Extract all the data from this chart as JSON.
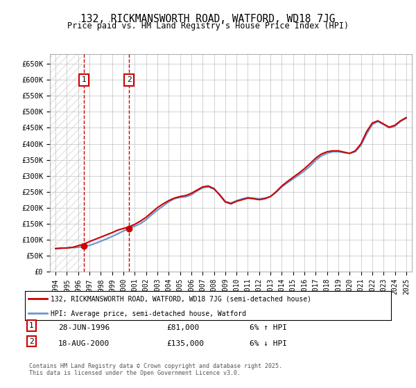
{
  "title": "132, RICKMANSWORTH ROAD, WATFORD, WD18 7JG",
  "subtitle": "Price paid vs. HM Land Registry's House Price Index (HPI)",
  "ylabel_ticks": [
    0,
    50000,
    100000,
    150000,
    200000,
    250000,
    300000,
    350000,
    400000,
    450000,
    500000,
    550000,
    600000,
    650000
  ],
  "ylabel_labels": [
    "£0",
    "£50K",
    "£100K",
    "£150K",
    "£200K",
    "£250K",
    "£300K",
    "£350K",
    "£400K",
    "£450K",
    "£500K",
    "£550K",
    "£600K",
    "£650K"
  ],
  "ylim": [
    0,
    680000
  ],
  "xlim_start": 1993.5,
  "xlim_end": 2025.5,
  "x_ticks": [
    1994,
    1995,
    1996,
    1997,
    1998,
    1999,
    2000,
    2001,
    2002,
    2003,
    2004,
    2005,
    2006,
    2007,
    2008,
    2009,
    2010,
    2011,
    2012,
    2013,
    2014,
    2015,
    2016,
    2017,
    2018,
    2019,
    2020,
    2021,
    2022,
    2023,
    2024,
    2025
  ],
  "hpi_x": [
    1994.0,
    1994.5,
    1995.0,
    1995.5,
    1996.0,
    1996.5,
    1997.0,
    1997.5,
    1998.0,
    1998.5,
    1999.0,
    1999.5,
    2000.0,
    2000.5,
    2001.0,
    2001.5,
    2002.0,
    2002.5,
    2003.0,
    2003.5,
    2004.0,
    2004.5,
    2005.0,
    2005.5,
    2006.0,
    2006.5,
    2007.0,
    2007.5,
    2008.0,
    2008.5,
    2009.0,
    2009.5,
    2010.0,
    2010.5,
    2011.0,
    2011.5,
    2012.0,
    2012.5,
    2013.0,
    2013.5,
    2014.0,
    2014.5,
    2015.0,
    2015.5,
    2016.0,
    2016.5,
    2017.0,
    2017.5,
    2018.0,
    2018.5,
    2019.0,
    2019.5,
    2020.0,
    2020.5,
    2021.0,
    2021.5,
    2022.0,
    2022.5,
    2023.0,
    2023.5,
    2024.0,
    2024.5,
    2025.0
  ],
  "hpi_y": [
    72000,
    73000,
    74000,
    75000,
    76000,
    78000,
    82000,
    88000,
    95000,
    102000,
    110000,
    118000,
    127000,
    135000,
    142000,
    150000,
    162000,
    178000,
    192000,
    205000,
    218000,
    228000,
    232000,
    234000,
    240000,
    252000,
    262000,
    265000,
    258000,
    242000,
    220000,
    215000,
    222000,
    228000,
    232000,
    230000,
    228000,
    230000,
    235000,
    248000,
    265000,
    278000,
    290000,
    302000,
    315000,
    330000,
    348000,
    362000,
    370000,
    375000,
    375000,
    372000,
    370000,
    375000,
    395000,
    430000,
    460000,
    470000,
    460000,
    450000,
    455000,
    470000,
    480000
  ],
  "price_x": [
    1994.0,
    1994.5,
    1995.0,
    1995.5,
    1996.0,
    1996.5,
    1997.0,
    1997.5,
    1998.0,
    1998.5,
    1999.0,
    1999.5,
    2000.0,
    2000.5,
    2001.0,
    2001.5,
    2002.0,
    2002.5,
    2003.0,
    2003.5,
    2004.0,
    2004.5,
    2005.0,
    2005.5,
    2006.0,
    2006.5,
    2007.0,
    2007.5,
    2008.0,
    2008.5,
    2009.0,
    2009.5,
    2010.0,
    2010.5,
    2011.0,
    2011.5,
    2012.0,
    2012.5,
    2013.0,
    2013.5,
    2014.0,
    2014.5,
    2015.0,
    2015.5,
    2016.0,
    2016.5,
    2017.0,
    2017.5,
    2018.0,
    2018.5,
    2019.0,
    2019.5,
    2020.0,
    2020.5,
    2021.0,
    2021.5,
    2022.0,
    2022.5,
    2023.0,
    2023.5,
    2024.0,
    2024.5,
    2025.0
  ],
  "price_y": [
    72000,
    73500,
    74000,
    76000,
    81000,
    86000,
    94000,
    101000,
    108000,
    115000,
    122000,
    130000,
    135000,
    140000,
    148000,
    158000,
    170000,
    185000,
    200000,
    212000,
    222000,
    230000,
    235000,
    238000,
    245000,
    255000,
    265000,
    268000,
    260000,
    240000,
    218000,
    212000,
    220000,
    225000,
    230000,
    228000,
    225000,
    228000,
    235000,
    250000,
    268000,
    282000,
    295000,
    308000,
    322000,
    338000,
    355000,
    368000,
    375000,
    378000,
    378000,
    374000,
    370000,
    378000,
    400000,
    438000,
    465000,
    472000,
    462000,
    452000,
    458000,
    472000,
    482000
  ],
  "marker1_x": 1996.5,
  "marker1_y": 81000,
  "marker2_x": 2000.5,
  "marker2_y": 135000,
  "marker1_label": "1",
  "marker2_label": "2",
  "marker1_date": "28-JUN-1996",
  "marker1_price": "£81,000",
  "marker1_hpi": "6% ↑ HPI",
  "marker2_date": "18-AUG-2000",
  "marker2_price": "£135,000",
  "marker2_hpi": "6% ↓ HPI",
  "legend1": "132, RICKMANSWORTH ROAD, WATFORD, WD18 7JG (semi-detached house)",
  "legend2": "HPI: Average price, semi-detached house, Watford",
  "red_color": "#cc0000",
  "blue_color": "#6699cc",
  "fill_color": "#cce0f0",
  "background_color": "#ffffff",
  "hatch_color": "#d0d0d0",
  "grid_color": "#c0c0c0",
  "footnote": "Contains HM Land Registry data © Crown copyright and database right 2025.\nThis data is licensed under the Open Government Licence v3.0."
}
